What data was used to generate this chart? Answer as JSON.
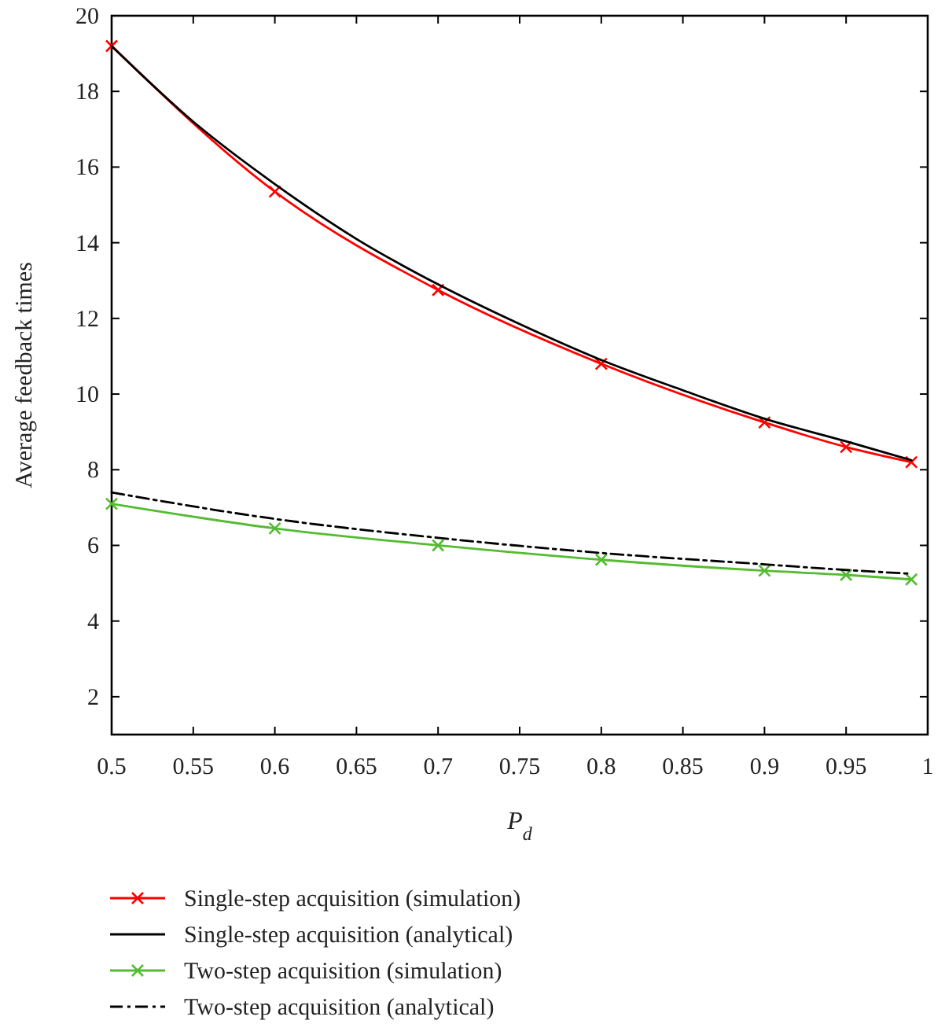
{
  "chart_data": {
    "type": "line",
    "xlabel": "P$_{d}$",
    "ylabel": "Average feedback times",
    "xlim": [
      0.5,
      1
    ],
    "xticks": [
      0.5,
      0.55,
      0.6,
      0.65,
      0.7,
      0.75,
      0.8,
      0.85,
      0.9,
      0.95,
      1
    ],
    "ylim": [
      1,
      20
    ],
    "yticks": [
      2,
      4,
      6,
      8,
      10,
      12,
      14,
      16,
      18,
      20
    ],
    "grid": false,
    "legend": "bottom",
    "series": [
      {
        "name": "Single-step acquisition (simulation)",
        "color": "#ff0000",
        "marker": "cross",
        "line_style": "solid",
        "x": [
          0.5,
          0.6,
          0.7,
          0.8,
          0.9,
          0.95,
          0.99
        ],
        "values": [
          19.2,
          15.35,
          12.75,
          10.8,
          9.25,
          8.6,
          8.2
        ]
      },
      {
        "name": "Single-step acquisition (analytical)",
        "color": "#000000",
        "marker": "none",
        "line_style": "solid",
        "x": [
          0.5,
          0.55,
          0.6,
          0.65,
          0.7,
          0.75,
          0.8,
          0.85,
          0.9,
          0.95,
          0.99
        ],
        "values": [
          19.2,
          17.2,
          15.55,
          14.1,
          12.9,
          11.85,
          10.9,
          10.1,
          9.35,
          8.75,
          8.25
        ]
      },
      {
        "name": "Two-step acquisition (simulation)",
        "color": "#55bb33",
        "marker": "cross",
        "line_style": "solid",
        "x": [
          0.5,
          0.6,
          0.7,
          0.8,
          0.9,
          0.95,
          0.99
        ],
        "values": [
          7.1,
          6.45,
          6.0,
          5.62,
          5.33,
          5.22,
          5.1
        ]
      },
      {
        "name": "Two-step acquisition (analytical)",
        "color": "#000000",
        "marker": "none",
        "line_style": "dashdot",
        "x": [
          0.5,
          0.6,
          0.7,
          0.8,
          0.9,
          0.95,
          0.99
        ],
        "values": [
          7.4,
          6.7,
          6.2,
          5.8,
          5.5,
          5.35,
          5.25
        ]
      }
    ]
  }
}
